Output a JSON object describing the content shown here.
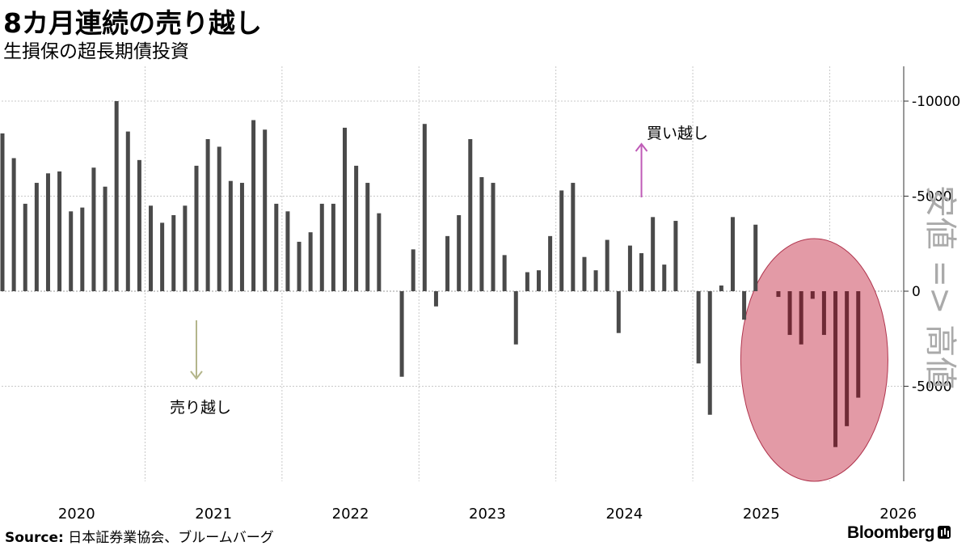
{
  "title": "8カ月連続の売り越し",
  "subtitle": "生損保の超長期債投資",
  "source_label": "Source:",
  "source_text": "日本証券業協会、ブルームバーグ",
  "logo_text": "Bloomberg",
  "colors": {
    "bar": "#4a4a4a",
    "highlight_fill": "#e39aa6",
    "highlight_stroke": "#b0354e",
    "highlight_bar": "#6e2a35",
    "buy_arrow": "#bf5bb7",
    "sell_arrow": "#b3b58a",
    "grid": "#c8c8c8",
    "axis_title": "#aaaaaa"
  },
  "chart_data": {
    "type": "bar",
    "y_axis_title": "安値 => 高値",
    "y_axis_side": "right",
    "ylim": [
      -10000,
      12000
    ],
    "yticks": [
      10000,
      5000,
      0,
      -5000
    ],
    "ytick_labels": [
      "10000",
      "5000",
      "0",
      "5000"
    ],
    "x_range": [
      "2019-12",
      "2026-05"
    ],
    "xtick_labels": [
      "2020",
      "2021",
      "2022",
      "2023",
      "2024",
      "2025",
      "2026"
    ],
    "grid": true,
    "annotations": [
      {
        "text": "買い越し",
        "direction": "up",
        "date": "2024-08"
      },
      {
        "text": "売り越し",
        "direction": "down",
        "date": "2021-05"
      }
    ],
    "highlight": {
      "shape": "ellipse",
      "from": "2025-06",
      "to": "2026-05"
    },
    "series": [
      {
        "dates": [
          "2019-12",
          "2020-01",
          "2020-02",
          "2020-03",
          "2020-04",
          "2020-05",
          "2020-06",
          "2020-07",
          "2020-08",
          "2020-09",
          "2020-10",
          "2020-11",
          "2020-12",
          "2021-01",
          "2021-02",
          "2021-03",
          "2021-04",
          "2021-05",
          "2021-06",
          "2021-07",
          "2021-08",
          "2021-09",
          "2021-10",
          "2021-11",
          "2021-12",
          "2022-01",
          "2022-02",
          "2022-03",
          "2022-04",
          "2022-05",
          "2022-06",
          "2022-07",
          "2022-08",
          "2022-09",
          "2022-10",
          "2022-11",
          "2022-12",
          "2023-01",
          "2023-02",
          "2023-03",
          "2023-04",
          "2023-05",
          "2023-06",
          "2023-07",
          "2023-08",
          "2023-09",
          "2023-10",
          "2023-11",
          "2023-12",
          "2024-01",
          "2024-02",
          "2024-03",
          "2024-04",
          "2024-05",
          "2024-06",
          "2024-07",
          "2024-08",
          "2024-09",
          "2024-10",
          "2024-11",
          "2024-12",
          "2025-01",
          "2025-02",
          "2025-03",
          "2025-04",
          "2025-05",
          "2025-06",
          "2025-07",
          "2025-08",
          "2025-09",
          "2025-10",
          "2025-11",
          "2025-12",
          "2026-01",
          "2026-02",
          "2026-03",
          "2026-04",
          "2026-05"
        ],
        "values": [
          8300,
          7000,
          4600,
          5700,
          6200,
          6300,
          4200,
          4400,
          6500,
          5500,
          10000,
          8400,
          6900,
          4500,
          3600,
          4000,
          4500,
          6600,
          8000,
          7600,
          5800,
          5700,
          9000,
          8500,
          4600,
          4200,
          2600,
          3100,
          4600,
          4600,
          8600,
          6600,
          5700,
          4100,
          0,
          -4500,
          2200,
          8800,
          -800,
          2900,
          4000,
          8000,
          6000,
          5700,
          1900,
          -2800,
          1000,
          1100,
          2900,
          5300,
          5700,
          1800,
          1100,
          2700,
          -2200,
          2400,
          2000,
          3900,
          1400,
          3700,
          0,
          -3800,
          -6500,
          300,
          3900,
          -1500,
          3500,
          0,
          -300,
          -2300,
          -2800,
          -400,
          -2300,
          -8200,
          -7100,
          -5600,
          0,
          0
        ]
      }
    ]
  }
}
